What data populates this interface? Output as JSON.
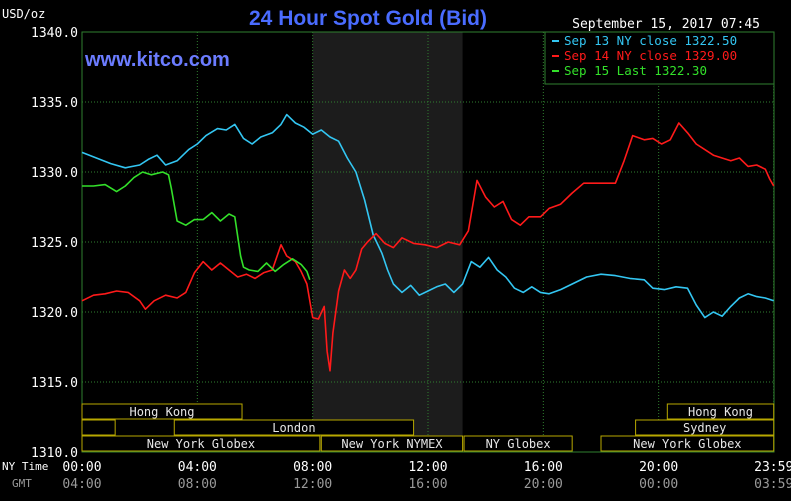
{
  "chart_data": {
    "type": "line",
    "title": "24 Hour Spot Gold (Bid)",
    "unit_label": "USD/oz",
    "website": "www.kitco.com",
    "timestamp": "September 15, 2017 07:45",
    "ylim": [
      1310,
      1340
    ],
    "y_ticks": [
      "1340.0",
      "1335.0",
      "1330.0",
      "1325.0",
      "1320.0",
      "1315.0",
      "1310.0"
    ],
    "x_ticks_ny_label": "NY Time",
    "x_ticks_gmt_label": "GMT",
    "x_ticks_ny": [
      "00:00",
      "04:00",
      "08:00",
      "12:00",
      "16:00",
      "20:00",
      "23:59"
    ],
    "x_ticks_gmt": [
      "04:00",
      "08:00",
      "12:00",
      "16:00",
      "20:00",
      "00:00",
      "03:59"
    ],
    "grid": true,
    "legend_position": "top-right",
    "colors": {
      "background": "#000000",
      "grid": "#2f7f2f",
      "title": "#4a6cff",
      "website": "#6b7cff",
      "axis_text": "#ffffff",
      "gmt_text": "#9a9a9a",
      "session_border": "#b8a800",
      "session_text": "#e6e6e6",
      "shaded_region": "#1c1c1c"
    },
    "shaded_hours": [
      8,
      13.2
    ],
    "sessions": [
      {
        "label": "Hong Kong",
        "row": 0,
        "start": 0,
        "end": 5.55
      },
      {
        "label": "",
        "row": 1,
        "start": 0,
        "end": 1.15
      },
      {
        "label": "London",
        "row": 1,
        "start": 3.2,
        "end": 11.5
      },
      {
        "label": "New York Globex",
        "row": 2,
        "start": 0,
        "end": 8.25
      },
      {
        "label": "New York NYMEX",
        "row": 2,
        "start": 8.3,
        "end": 13.2
      },
      {
        "label": "NY Globex",
        "row": 2,
        "start": 13.25,
        "end": 17
      },
      {
        "label": "Hong Kong",
        "row": 0,
        "start": 20.3,
        "end": 23.99
      },
      {
        "label": "Sydney",
        "row": 1,
        "start": 19.2,
        "end": 23.99
      },
      {
        "label": "New York Globex",
        "row": 2,
        "start": 18,
        "end": 23.99
      }
    ],
    "series": [
      {
        "name": "Sep 13 NY close 1322.50",
        "color": "#33c6f2",
        "points": [
          [
            0,
            1331.4
          ],
          [
            0.5,
            1331.0
          ],
          [
            1.0,
            1330.6
          ],
          [
            1.5,
            1330.3
          ],
          [
            2.0,
            1330.5
          ],
          [
            2.3,
            1330.9
          ],
          [
            2.6,
            1331.2
          ],
          [
            2.9,
            1330.5
          ],
          [
            3.3,
            1330.8
          ],
          [
            3.7,
            1331.6
          ],
          [
            4.0,
            1332.0
          ],
          [
            4.3,
            1332.6
          ],
          [
            4.7,
            1333.1
          ],
          [
            5.0,
            1333.0
          ],
          [
            5.3,
            1333.4
          ],
          [
            5.6,
            1332.4
          ],
          [
            5.9,
            1332.0
          ],
          [
            6.2,
            1332.5
          ],
          [
            6.6,
            1332.8
          ],
          [
            6.9,
            1333.4
          ],
          [
            7.1,
            1334.1
          ],
          [
            7.4,
            1333.5
          ],
          [
            7.7,
            1333.2
          ],
          [
            8.0,
            1332.7
          ],
          [
            8.3,
            1333.0
          ],
          [
            8.6,
            1332.5
          ],
          [
            8.9,
            1332.2
          ],
          [
            9.2,
            1331.0
          ],
          [
            9.5,
            1330.0
          ],
          [
            9.8,
            1328.0
          ],
          [
            10.1,
            1325.5
          ],
          [
            10.4,
            1324.2
          ],
          [
            10.6,
            1323.0
          ],
          [
            10.8,
            1322.0
          ],
          [
            11.1,
            1321.4
          ],
          [
            11.4,
            1321.9
          ],
          [
            11.7,
            1321.2
          ],
          [
            12.0,
            1321.5
          ],
          [
            12.3,
            1321.8
          ],
          [
            12.6,
            1322.0
          ],
          [
            12.9,
            1321.4
          ],
          [
            13.2,
            1322.0
          ],
          [
            13.5,
            1323.6
          ],
          [
            13.8,
            1323.2
          ],
          [
            14.1,
            1323.9
          ],
          [
            14.4,
            1323.0
          ],
          [
            14.7,
            1322.5
          ],
          [
            15.0,
            1321.7
          ],
          [
            15.3,
            1321.4
          ],
          [
            15.6,
            1321.8
          ],
          [
            15.9,
            1321.4
          ],
          [
            16.2,
            1321.3
          ],
          [
            16.6,
            1321.6
          ],
          [
            17.0,
            1322.0
          ],
          [
            17.5,
            1322.5
          ],
          [
            18.0,
            1322.7
          ],
          [
            18.5,
            1322.6
          ],
          [
            19.0,
            1322.4
          ],
          [
            19.5,
            1322.3
          ],
          [
            19.8,
            1321.7
          ],
          [
            20.2,
            1321.6
          ],
          [
            20.6,
            1321.8
          ],
          [
            21.0,
            1321.7
          ],
          [
            21.3,
            1320.5
          ],
          [
            21.6,
            1319.6
          ],
          [
            21.9,
            1320.0
          ],
          [
            22.2,
            1319.7
          ],
          [
            22.5,
            1320.4
          ],
          [
            22.8,
            1321.0
          ],
          [
            23.1,
            1321.3
          ],
          [
            23.4,
            1321.1
          ],
          [
            23.7,
            1321.0
          ],
          [
            23.99,
            1320.8
          ]
        ]
      },
      {
        "name": "Sep 14 NY close 1329.00",
        "color": "#ff1a1a",
        "points": [
          [
            0,
            1320.8
          ],
          [
            0.4,
            1321.2
          ],
          [
            0.8,
            1321.3
          ],
          [
            1.2,
            1321.5
          ],
          [
            1.6,
            1321.4
          ],
          [
            2.0,
            1320.8
          ],
          [
            2.2,
            1320.2
          ],
          [
            2.5,
            1320.8
          ],
          [
            2.9,
            1321.2
          ],
          [
            3.3,
            1321.0
          ],
          [
            3.6,
            1321.4
          ],
          [
            3.9,
            1322.8
          ],
          [
            4.2,
            1323.6
          ],
          [
            4.5,
            1323.0
          ],
          [
            4.8,
            1323.5
          ],
          [
            5.1,
            1323.0
          ],
          [
            5.4,
            1322.5
          ],
          [
            5.7,
            1322.7
          ],
          [
            6.0,
            1322.4
          ],
          [
            6.3,
            1322.8
          ],
          [
            6.6,
            1323.0
          ],
          [
            6.9,
            1324.8
          ],
          [
            7.1,
            1324.0
          ],
          [
            7.4,
            1323.6
          ],
          [
            7.6,
            1322.9
          ],
          [
            7.8,
            1322.0
          ],
          [
            8.0,
            1319.6
          ],
          [
            8.2,
            1319.5
          ],
          [
            8.4,
            1320.4
          ],
          [
            8.5,
            1317.2
          ],
          [
            8.6,
            1315.8
          ],
          [
            8.7,
            1318.5
          ],
          [
            8.9,
            1321.5
          ],
          [
            9.1,
            1323.0
          ],
          [
            9.3,
            1322.4
          ],
          [
            9.5,
            1323.0
          ],
          [
            9.7,
            1324.5
          ],
          [
            9.9,
            1325.0
          ],
          [
            10.2,
            1325.6
          ],
          [
            10.5,
            1324.9
          ],
          [
            10.8,
            1324.6
          ],
          [
            11.1,
            1325.3
          ],
          [
            11.5,
            1324.9
          ],
          [
            11.9,
            1324.8
          ],
          [
            12.3,
            1324.6
          ],
          [
            12.7,
            1325.0
          ],
          [
            13.1,
            1324.8
          ],
          [
            13.4,
            1325.8
          ],
          [
            13.7,
            1329.4
          ],
          [
            14.0,
            1328.2
          ],
          [
            14.3,
            1327.5
          ],
          [
            14.6,
            1327.9
          ],
          [
            14.9,
            1326.6
          ],
          [
            15.2,
            1326.2
          ],
          [
            15.5,
            1326.8
          ],
          [
            15.9,
            1326.8
          ],
          [
            16.2,
            1327.4
          ],
          [
            16.6,
            1327.7
          ],
          [
            17.0,
            1328.5
          ],
          [
            17.4,
            1329.2
          ],
          [
            18.0,
            1329.2
          ],
          [
            18.5,
            1329.2
          ],
          [
            18.8,
            1330.8
          ],
          [
            19.1,
            1332.6
          ],
          [
            19.5,
            1332.3
          ],
          [
            19.8,
            1332.4
          ],
          [
            20.1,
            1332.0
          ],
          [
            20.4,
            1332.3
          ],
          [
            20.7,
            1333.5
          ],
          [
            21.0,
            1332.8
          ],
          [
            21.3,
            1332.0
          ],
          [
            21.6,
            1331.6
          ],
          [
            21.9,
            1331.2
          ],
          [
            22.2,
            1331.0
          ],
          [
            22.5,
            1330.8
          ],
          [
            22.8,
            1331.0
          ],
          [
            23.1,
            1330.4
          ],
          [
            23.4,
            1330.5
          ],
          [
            23.7,
            1330.2
          ],
          [
            23.85,
            1329.5
          ],
          [
            23.99,
            1329.0
          ]
        ]
      },
      {
        "name": "Sep 15 Last 1322.30",
        "color": "#33e02a",
        "points": [
          [
            0,
            1329.0
          ],
          [
            0.4,
            1329.0
          ],
          [
            0.8,
            1329.1
          ],
          [
            1.2,
            1328.6
          ],
          [
            1.5,
            1329.0
          ],
          [
            1.8,
            1329.6
          ],
          [
            2.1,
            1330.0
          ],
          [
            2.4,
            1329.8
          ],
          [
            2.8,
            1330.0
          ],
          [
            3.0,
            1329.8
          ],
          [
            3.1,
            1328.8
          ],
          [
            3.3,
            1326.5
          ],
          [
            3.6,
            1326.2
          ],
          [
            3.9,
            1326.6
          ],
          [
            4.2,
            1326.6
          ],
          [
            4.5,
            1327.1
          ],
          [
            4.8,
            1326.5
          ],
          [
            5.1,
            1327.0
          ],
          [
            5.3,
            1326.8
          ],
          [
            5.5,
            1324.0
          ],
          [
            5.6,
            1323.2
          ],
          [
            5.8,
            1323.0
          ],
          [
            6.1,
            1322.9
          ],
          [
            6.4,
            1323.5
          ],
          [
            6.7,
            1322.9
          ],
          [
            7.0,
            1323.4
          ],
          [
            7.3,
            1323.8
          ],
          [
            7.6,
            1323.4
          ],
          [
            7.8,
            1322.9
          ],
          [
            7.9,
            1322.3
          ]
        ]
      }
    ]
  }
}
